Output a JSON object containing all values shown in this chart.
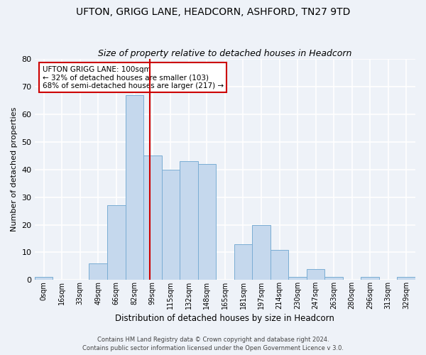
{
  "title": "UFTON, GRIGG LANE, HEADCORN, ASHFORD, TN27 9TD",
  "subtitle": "Size of property relative to detached houses in Headcorn",
  "xlabel": "Distribution of detached houses by size in Headcorn",
  "ylabel": "Number of detached properties",
  "bin_labels": [
    "0sqm",
    "16sqm",
    "33sqm",
    "49sqm",
    "66sqm",
    "82sqm",
    "99sqm",
    "115sqm",
    "132sqm",
    "148sqm",
    "165sqm",
    "181sqm",
    "197sqm",
    "214sqm",
    "230sqm",
    "247sqm",
    "263sqm",
    "280sqm",
    "296sqm",
    "313sqm",
    "329sqm"
  ],
  "bar_values": [
    1,
    0,
    0,
    6,
    27,
    67,
    45,
    40,
    43,
    42,
    0,
    13,
    20,
    11,
    1,
    4,
    1,
    0,
    1,
    0,
    1
  ],
  "bar_color": "#c5d8ed",
  "bar_edgecolor": "#7aadd4",
  "vline_x": 5.85,
  "vline_color": "#cc0000",
  "ylim": [
    0,
    80
  ],
  "yticks": [
    0,
    10,
    20,
    30,
    40,
    50,
    60,
    70,
    80
  ],
  "annotation_title": "UFTON GRIGG LANE: 100sqm",
  "annotation_line2": "← 32% of detached houses are smaller (103)",
  "annotation_line3": "68% of semi-detached houses are larger (217) →",
  "annotation_box_color": "#ffffff",
  "annotation_box_edgecolor": "#cc0000",
  "footer1": "Contains HM Land Registry data © Crown copyright and database right 2024.",
  "footer2": "Contains public sector information licensed under the Open Government Licence v 3.0.",
  "background_color": "#eef2f8",
  "grid_color": "#ffffff",
  "title_fontsize": 10,
  "subtitle_fontsize": 9
}
